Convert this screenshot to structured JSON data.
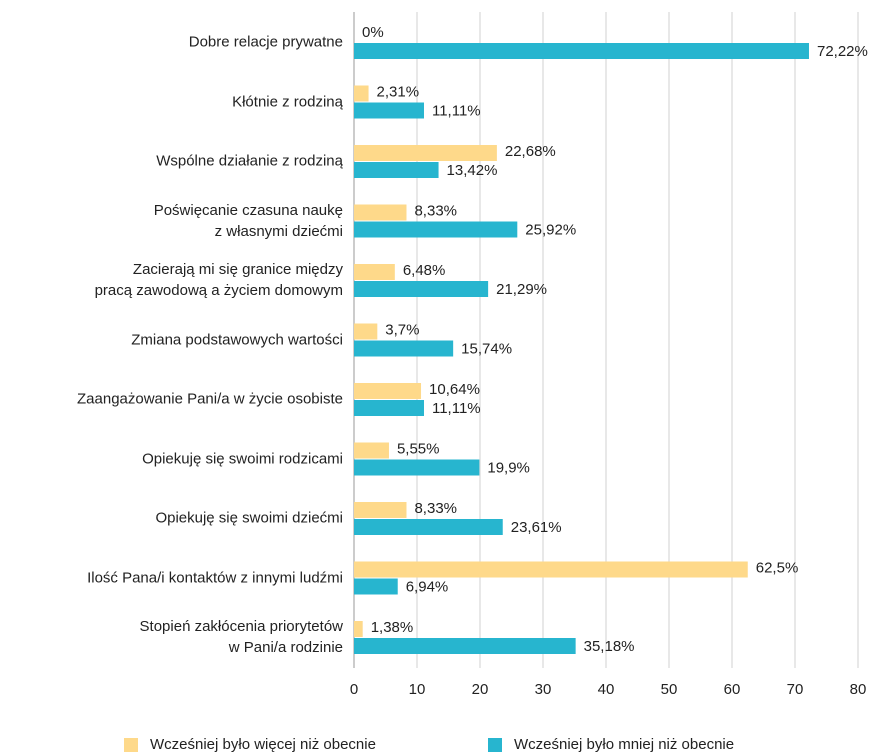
{
  "chart_data": {
    "type": "barh",
    "categories": [
      "Dobre relacje prywatne",
      "Kłótnie z rodziną",
      "Wspólne działanie z rodziną",
      "Poświęcanie czasuna naukę\nz własnymi dziećmi",
      "Zacierają mi się granice między\npracą zawodową a życiem domowym",
      "Zmiana podstawowych wartości",
      "Zaangażowanie Pani/a w życie osobiste",
      "Opiekuję się swoimi rodzicami",
      "Opiekuję się swoimi dziećmi",
      "Ilość Pana/i kontaktów z innymi ludźmi",
      "Stopień zakłócenia priorytetów\nw Pani/a rodzinie"
    ],
    "series": [
      {
        "name": "Wcześniej było więcej niż obecnie",
        "color": "#fed98a",
        "values": [
          0,
          2.31,
          22.68,
          8.33,
          6.48,
          3.7,
          10.64,
          5.55,
          8.33,
          62.5,
          1.38
        ],
        "value_labels": [
          "0%",
          "2,31%",
          "22,68%",
          "8,33%",
          "6,48%",
          "3,7%",
          "10,64%",
          "5,55%",
          "8,33%",
          "62,5%",
          "1,38%"
        ]
      },
      {
        "name": "Wcześniej było mniej niż obecnie",
        "color": "#27b5cf",
        "values": [
          72.22,
          11.11,
          13.42,
          25.92,
          21.29,
          15.74,
          11.11,
          19.9,
          23.61,
          6.94,
          35.18
        ],
        "value_labels": [
          "72,22%",
          "11,11%",
          "13,42%",
          "25,92%",
          "21,29%",
          "15,74%",
          "11,11%",
          "19,9%",
          "23,61%",
          "6,94%",
          "35,18%"
        ]
      }
    ],
    "xlim": [
      0,
      80
    ],
    "xticks": [
      0,
      10,
      20,
      30,
      40,
      50,
      60,
      70,
      80
    ],
    "grid": true,
    "legend": "bottom"
  }
}
